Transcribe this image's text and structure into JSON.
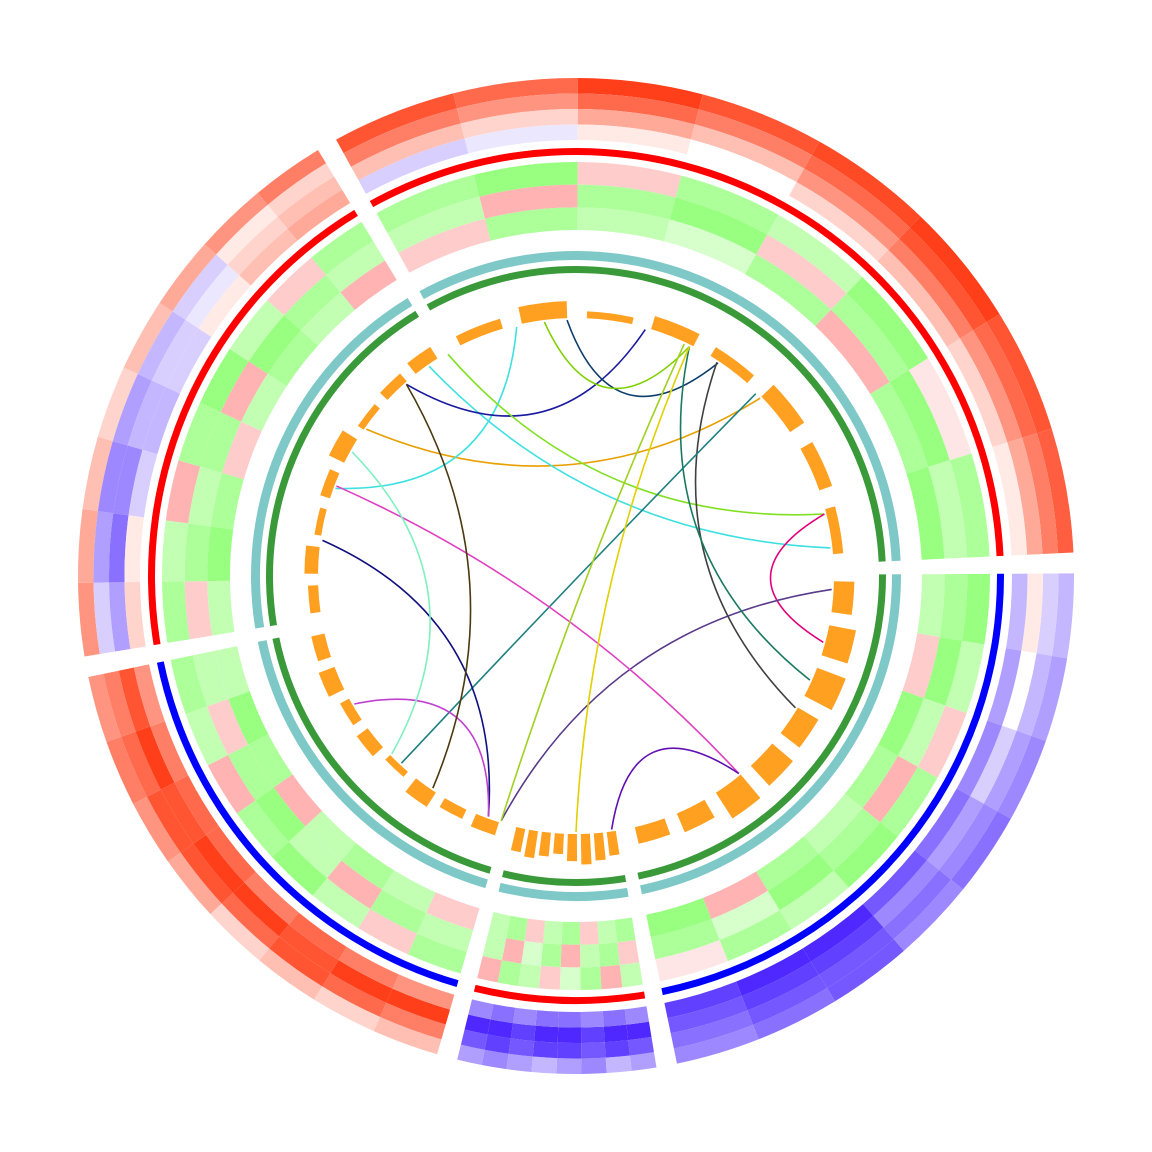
{
  "chart_data": {
    "type": "circos",
    "heat_range": [
      -1,
      1
    ],
    "outer_positive_color": "#ff2a00",
    "outer_negative_color": "#3a10ff",
    "inner_positive_color": "#ff0000",
    "inner_negative_color": "#33ff00",
    "bar_color": "#ffa020",
    "sectors": [
      {
        "start": 330,
        "end": 88.5,
        "color": "#ff0000",
        "outer": [
          [
            0.8,
            0.7,
            0.9,
            0.8,
            0.85,
            0.9,
            0.8,
            0.75
          ],
          [
            0.6,
            0.5,
            0.7,
            0.6,
            0.7,
            0.8,
            0.7,
            0.6
          ],
          [
            0.3,
            0.2,
            0.4,
            0.3,
            0.5,
            0.6,
            0.5,
            0.4
          ],
          [
            -0.2,
            -0.1,
            0.1,
            0,
            0.2,
            0.3,
            0.2,
            0.1
          ]
        ],
        "inner": [
          [
            -0.4,
            -0.5,
            0.2,
            -0.4,
            -0.3,
            -0.5,
            0.1,
            -0.4
          ],
          [
            -0.3,
            0.3,
            -0.4,
            -0.5,
            0.2,
            -0.4,
            -0.5,
            -0.3
          ],
          [
            0.2,
            -0.4,
            -0.3,
            -0.2,
            -0.4,
            0.3,
            -0.4,
            -0.5
          ]
        ],
        "bars": [
          0.3,
          0.5,
          0.2,
          0.4,
          0.3,
          0.5,
          0.4,
          0.3
        ]
      },
      {
        "start": 88.5,
        "end": 169.5,
        "color": "#0000ff",
        "outer": [
          [
            -0.3,
            -0.4,
            -0.5,
            -0.6,
            -0.5,
            -0.7,
            -0.6,
            -0.5
          ],
          [
            -0.2,
            -0.3,
            -0.4,
            -0.5,
            -0.6,
            -0.7,
            -0.7,
            -0.6
          ],
          [
            0.1,
            0,
            -0.2,
            -0.4,
            -0.5,
            -0.8,
            -0.8,
            -0.7
          ],
          [
            -0.3,
            -0.4,
            -0.5,
            -0.6,
            -0.7,
            -0.9,
            -0.9,
            -0.8
          ]
        ],
        "inner": [
          [
            -0.5,
            -0.3,
            0.2,
            -0.4,
            -0.5,
            -0.3,
            -0.4,
            0.1
          ],
          [
            -0.4,
            -0.5,
            -0.3,
            0.3,
            -0.4,
            -0.5,
            -0.2,
            -0.4
          ],
          [
            -0.3,
            0.2,
            -0.5,
            -0.4,
            -0.3,
            -0.4,
            0.3,
            -0.5
          ]
        ],
        "bars": [
          0.6,
          0.8,
          0.9,
          0.7,
          0.8,
          0.9,
          0.6,
          0.5
        ]
      },
      {
        "start": 169.5,
        "end": 195,
        "color": "#ff0000",
        "outer": [
          [
            -0.4,
            -0.3,
            -0.5,
            -0.4,
            -0.3,
            -0.4,
            -0.5,
            -0.4
          ],
          [
            -0.7,
            -0.8,
            -0.7,
            -0.8,
            -0.8,
            -0.7,
            -0.8,
            -0.7
          ],
          [
            -0.9,
            -0.9,
            -0.8,
            -0.9,
            -0.9,
            -0.8,
            -0.9,
            -0.9
          ],
          [
            -0.5,
            -0.6,
            -0.5,
            -0.6,
            -0.6,
            -0.5,
            -0.6,
            -0.5
          ]
        ],
        "inner": [
          [
            -0.3,
            0.3,
            -0.4,
            -0.2,
            0.2,
            -0.3,
            -0.4,
            0.3
          ],
          [
            0.2,
            -0.4,
            -0.3,
            0.3,
            -0.4,
            -0.2,
            0.3,
            -0.3
          ],
          [
            -0.4,
            -0.3,
            0.2,
            -0.4,
            -0.3,
            0.2,
            -0.4,
            -0.3
          ]
        ],
        "bars": [
          0.7,
          0.8,
          0.9,
          0.8,
          0.6,
          0.7,
          0.8,
          0.7
        ]
      },
      {
        "start": 195,
        "end": 259.5,
        "color": "#0000ff",
        "outer": [
          [
            0.3,
            0.2,
            0.3,
            0.2,
            0.4,
            0.5,
            0.6,
            0.5
          ],
          [
            0.6,
            0.7,
            0.8,
            0.7,
            0.8,
            0.8,
            0.7,
            0.6
          ],
          [
            0.9,
            0.9,
            0.8,
            0.9,
            0.9,
            0.8,
            0.9,
            0.8
          ],
          [
            0.5,
            0.6,
            0.7,
            0.6,
            0.7,
            0.7,
            0.6,
            0.5
          ]
        ],
        "inner": [
          [
            -0.4,
            0.2,
            -0.3,
            -0.5,
            -0.4,
            0.3,
            -0.3,
            -0.4
          ],
          [
            -0.3,
            -0.4,
            0.3,
            -0.3,
            -0.5,
            -0.4,
            0.2,
            -0.3
          ],
          [
            0.2,
            -0.3,
            -0.4,
            -0.3,
            0.3,
            -0.4,
            -0.5,
            -0.3
          ]
        ],
        "bars": [
          0.4,
          0.3,
          0.5,
          0.2,
          0.4,
          0.3,
          0.5,
          0.4
        ]
      },
      {
        "start": 259.5,
        "end": 330,
        "color": "#ff0000",
        "outer": [
          [
            0.5,
            0.4,
            0.3,
            0.2,
            0.3,
            0.4,
            0.5,
            0.6
          ],
          [
            -0.2,
            -0.4,
            -0.5,
            -0.4,
            -0.3,
            -0.2,
            0.1,
            0.2
          ],
          [
            -0.4,
            -0.6,
            -0.5,
            -0.3,
            -0.2,
            -0.1,
            0.2,
            0.3
          ],
          [
            0.2,
            0.1,
            -0.2,
            -0.3,
            -0.2,
            0.1,
            0.3,
            0.4
          ]
        ],
        "inner": [
          [
            -0.4,
            -0.3,
            0.3,
            -0.4,
            -0.5,
            -0.3,
            0.2,
            -0.4
          ],
          [
            0.2,
            -0.4,
            -0.3,
            -0.4,
            0.3,
            -0.5,
            -0.4,
            -0.3
          ],
          [
            -0.3,
            -0.5,
            -0.4,
            0.2,
            -0.3,
            -0.4,
            -0.3,
            0.3
          ]
        ],
        "bars": [
          0.3,
          0.4,
          0.2,
          0.3,
          0.5,
          0.2,
          0.3,
          0.4
        ]
      }
    ],
    "links": [
      {
        "from": 305,
        "to": 46,
        "color": "#e8a000"
      },
      {
        "from": 325,
        "to": 83.7,
        "color": "#40e0e0"
      },
      {
        "from": 346.6,
        "to": 290,
        "color": "#40e0e0"
      },
      {
        "from": 318.5,
        "to": 15.7,
        "color": "#1a1aa0"
      },
      {
        "from": 358,
        "to": 33.7,
        "color": "#0d3d6b"
      },
      {
        "from": 352.9,
        "to": 26.3,
        "color": "#80d000"
      },
      {
        "from": 76,
        "to": 330,
        "color": "#80e020"
      },
      {
        "from": 76,
        "to": 105,
        "color": "#e0007a"
      },
      {
        "from": 93,
        "to": 197,
        "color": "#5a3a8a"
      },
      {
        "from": 33.4,
        "to": 121,
        "color": "#404040"
      },
      {
        "from": 26.3,
        "to": 114,
        "color": "#1a7a60"
      },
      {
        "from": 44.6,
        "to": 223,
        "color": "#208080"
      },
      {
        "from": 290.6,
        "to": 140.5,
        "color": "#e040c0"
      },
      {
        "from": 278,
        "to": 200,
        "color": "#101080"
      },
      {
        "from": 172,
        "to": 140.5,
        "color": "#6010b0"
      },
      {
        "from": 240,
        "to": 200,
        "color": "#c040d0"
      },
      {
        "from": 318.5,
        "to": 214,
        "color": "#4a3a10"
      },
      {
        "from": 299,
        "to": 226,
        "color": "#80f0c0"
      },
      {
        "from": 26.3,
        "to": 180,
        "color": "#e0d000"
      },
      {
        "from": 25,
        "to": 197,
        "color": "#a0d020"
      }
    ]
  }
}
